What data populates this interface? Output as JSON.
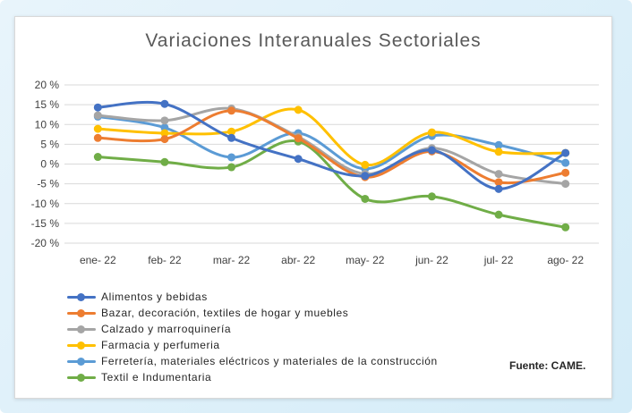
{
  "chart_data": {
    "type": "line",
    "title": "Variaciones Interanuales Sectoriales",
    "categories": [
      "ene- 22",
      "feb- 22",
      "mar- 22",
      "abr- 22",
      "may- 22",
      "jun- 22",
      "jul- 22",
      "ago- 22"
    ],
    "ylim": [
      -20,
      20
    ],
    "yticks": [
      20,
      15,
      10,
      5,
      0,
      -5,
      -10,
      -15,
      -20
    ],
    "ytick_labels": [
      "20 %",
      "15 %",
      "10 %",
      "5 %",
      "0 %",
      "-5 %",
      "-10 %",
      "-15 %",
      "-20 %"
    ],
    "grid": true,
    "legend_position": "bottom-left",
    "series": [
      {
        "name": "Alimentos y bebidas",
        "color": "#4472C4",
        "values": [
          14.3,
          15.2,
          6.6,
          1.3,
          -3.0,
          3.5,
          -6.3,
          2.8
        ]
      },
      {
        "name": "Bazar, decoración, textiles de hogar y muebles",
        "color": "#ED7D31",
        "values": [
          6.6,
          6.3,
          13.5,
          6.5,
          -3.3,
          3.2,
          -4.6,
          -2.2
        ]
      },
      {
        "name": "Calzado y marroquinería",
        "color": "#A5A5A5",
        "values": [
          12.3,
          11.0,
          14.0,
          6.9,
          -2.5,
          4.0,
          -2.5,
          -5.0
        ]
      },
      {
        "name": "Farmacia y perfumeria",
        "color": "#FFC000",
        "values": [
          8.9,
          7.8,
          8.2,
          13.7,
          -0.2,
          8.0,
          3.1,
          2.8
        ]
      },
      {
        "name": "Ferretería, materiales eléctricos y materiales de la construcción",
        "color": "#5B9BD5",
        "values": [
          12.0,
          9.2,
          1.7,
          7.8,
          -1.2,
          7.1,
          4.8,
          0.3
        ]
      },
      {
        "name": "Textil e Indumentaria",
        "color": "#70AD47",
        "values": [
          1.8,
          0.5,
          -0.8,
          5.7,
          -8.8,
          -8.2,
          -12.8,
          -16.0
        ]
      }
    ]
  },
  "source": "Fuente: CAME."
}
